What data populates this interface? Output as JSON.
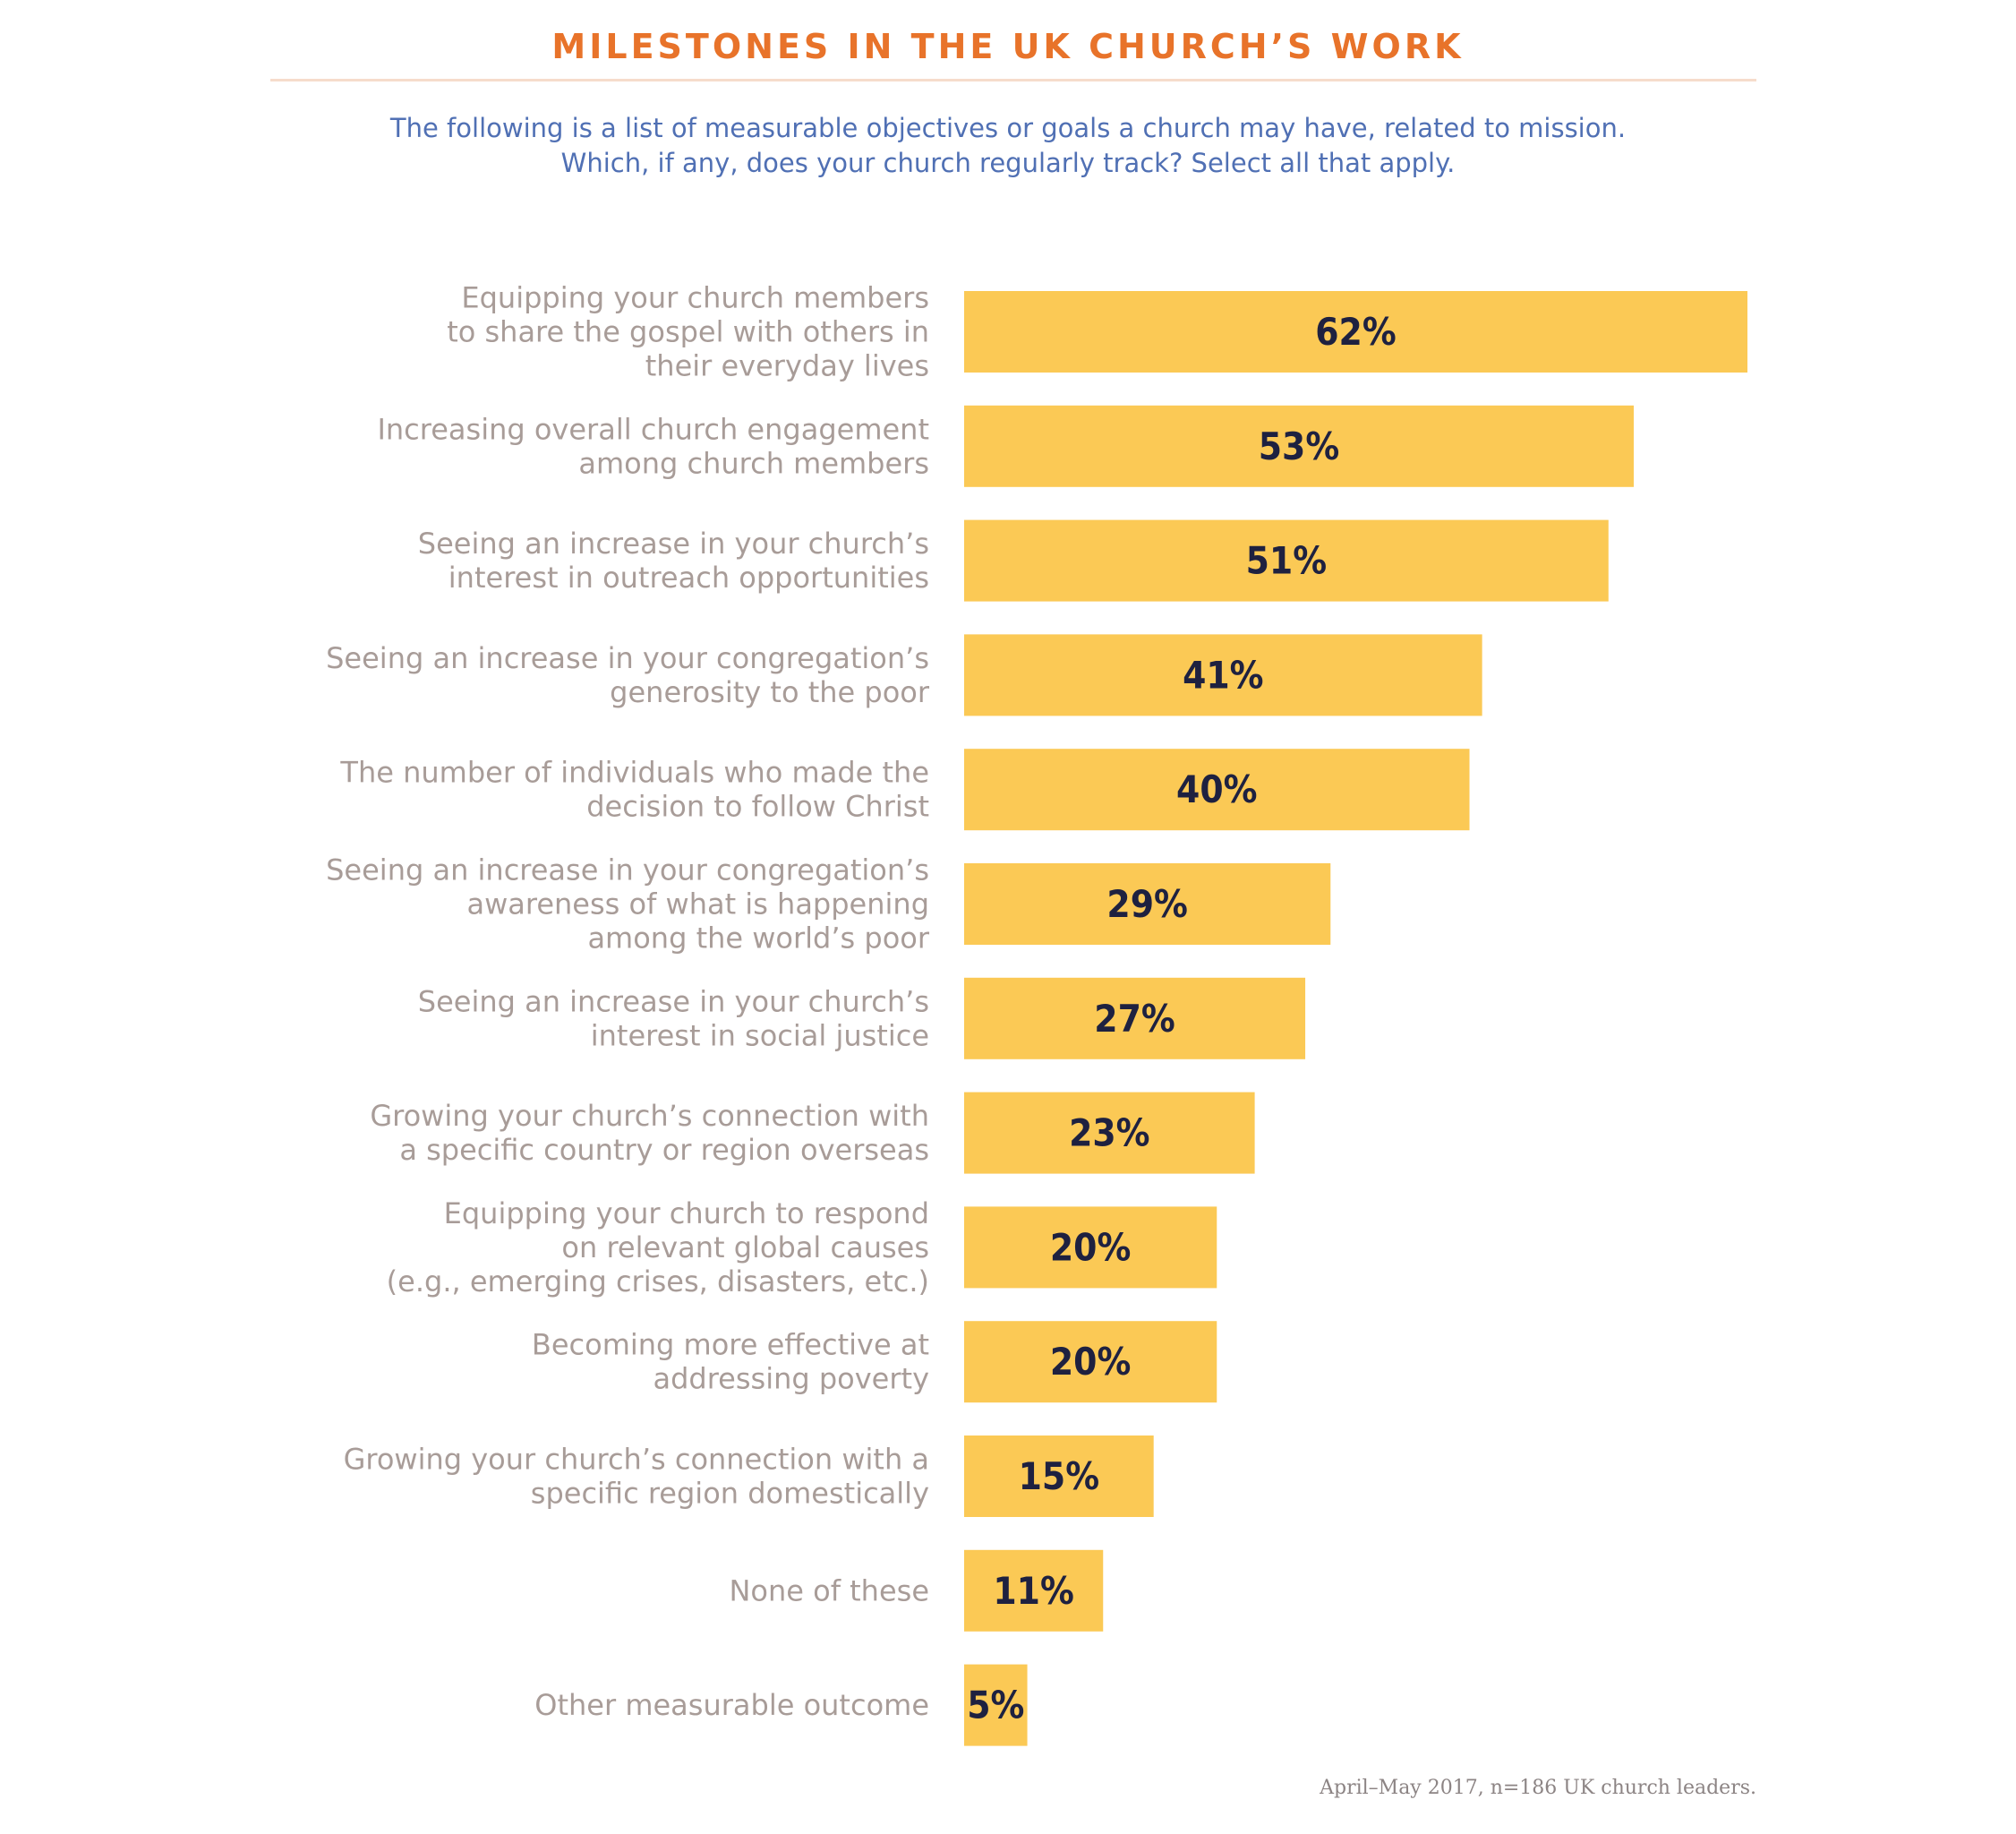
{
  "chart_data": {
    "type": "bar",
    "orientation": "horizontal",
    "title": "MILESTONES IN THE UK CHURCH’S WORK",
    "subtitle": "The following is a list of measurable objectives or goals a church may have, related to mission.\nWhich, if any, does your church regularly track? Select all that apply.",
    "categories": [
      "Equipping your church members\nto share the gospel with others in\ntheir everyday lives",
      "Increasing overall church engagement\namong church members",
      "Seeing an increase in your church’s\ninterest in outreach opportunities",
      "Seeing an increase in your congregation’s\ngenerosity to the poor",
      "The number of individuals who made the\ndecision to follow Christ",
      "Seeing an increase in your congregation’s\nawareness of what is happening\namong the world’s poor",
      "Seeing an increase in your church’s\ninterest in social justice",
      "Growing your church’s connection with\na specific country or region overseas",
      "Equipping your church to respond\non relevant global causes\n(e.g., emerging crises, disasters, etc.)",
      "Becoming more effective at\naddressing poverty",
      "Growing your church’s connection with a\nspecific region domestically",
      "None of these",
      "Other measurable outcome"
    ],
    "values": [
      62,
      53,
      51,
      41,
      40,
      29,
      27,
      23,
      20,
      20,
      15,
      11,
      5
    ],
    "value_labels": [
      "62%",
      "53%",
      "51%",
      "41%",
      "40%",
      "29%",
      "27%",
      "23%",
      "20%",
      "20%",
      "15%",
      "11%",
      "5%"
    ],
    "unit": "%",
    "xlim": [
      0,
      62
    ],
    "grid": false,
    "legend": "none",
    "bar_color": "#FBC955",
    "title_color": "#E8732A",
    "subtitle_color": "#5070B4",
    "label_color": "#A89C98",
    "value_color": "#1E2140",
    "note": "April–May 2017, n=186 UK church leaders."
  }
}
